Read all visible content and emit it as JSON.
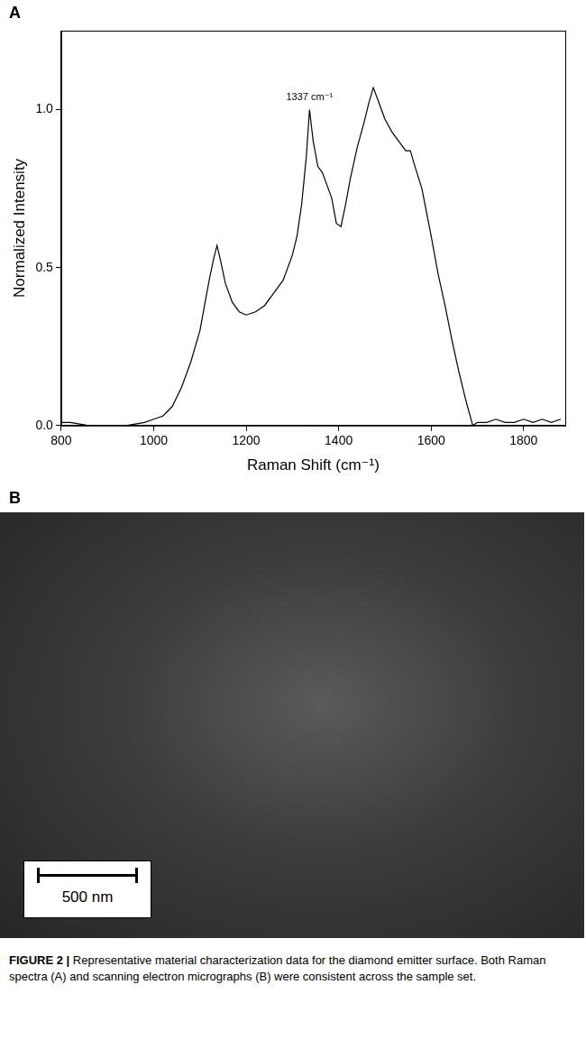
{
  "chart_data": {
    "type": "line",
    "panel": "A",
    "x_label": "Raman Shift (cm⁻¹)",
    "y_label": "Normalized Intensity",
    "x": [
      800,
      820,
      840,
      860,
      880,
      900,
      920,
      940,
      960,
      980,
      1000,
      1020,
      1040,
      1060,
      1080,
      1100,
      1110,
      1120,
      1130,
      1137,
      1145,
      1155,
      1170,
      1185,
      1200,
      1220,
      1240,
      1260,
      1280,
      1300,
      1310,
      1320,
      1330,
      1337,
      1345,
      1355,
      1365,
      1375,
      1385,
      1395,
      1405,
      1415,
      1425,
      1440,
      1455,
      1465,
      1475,
      1485,
      1500,
      1515,
      1530,
      1545,
      1555,
      1565,
      1580,
      1600,
      1615,
      1630,
      1645,
      1660,
      1675,
      1690,
      1700,
      1720,
      1740,
      1760,
      1780,
      1800,
      1820,
      1840,
      1860,
      1880
    ],
    "values": [
      0.01,
      0.01,
      0.005,
      0,
      0,
      0,
      0,
      0,
      0.005,
      0.01,
      0.02,
      0.03,
      0.06,
      0.12,
      0.2,
      0.3,
      0.38,
      0.46,
      0.53,
      0.57,
      0.52,
      0.45,
      0.39,
      0.36,
      0.35,
      0.36,
      0.38,
      0.42,
      0.46,
      0.54,
      0.6,
      0.7,
      0.85,
      1.0,
      0.9,
      0.82,
      0.8,
      0.76,
      0.72,
      0.64,
      0.63,
      0.7,
      0.78,
      0.88,
      0.96,
      1.02,
      1.07,
      1.03,
      0.97,
      0.93,
      0.9,
      0.87,
      0.87,
      0.82,
      0.75,
      0.6,
      0.48,
      0.38,
      0.27,
      0.17,
      0.08,
      0,
      0.01,
      0.01,
      0.02,
      0.01,
      0.01,
      0.02,
      0.01,
      0.02,
      0.01,
      0.02
    ],
    "color": "#000000",
    "xlim": [
      800,
      1890
    ],
    "xticks": [
      800,
      1000,
      1200,
      1400,
      1600,
      1800
    ],
    "ylim": [
      0,
      1.25
    ],
    "yticks": [
      {
        "value": 0,
        "label": "0.0"
      },
      0.5,
      {
        "value": 1,
        "label": "1.0"
      }
    ],
    "grid": false,
    "annotations": [
      {
        "text": "1337 cm⁻¹",
        "x": 1337,
        "y": 1.0
      }
    ]
  },
  "micrograph": {
    "panel": "B",
    "scale_bar": "500 nm"
  },
  "caption": {
    "label": "FIGURE 2 |",
    "text": "Representative material characterization data for the diamond emitter surface. Both Raman spectra (A) and scanning electron micrographs (B) were consistent across the sample set."
  }
}
